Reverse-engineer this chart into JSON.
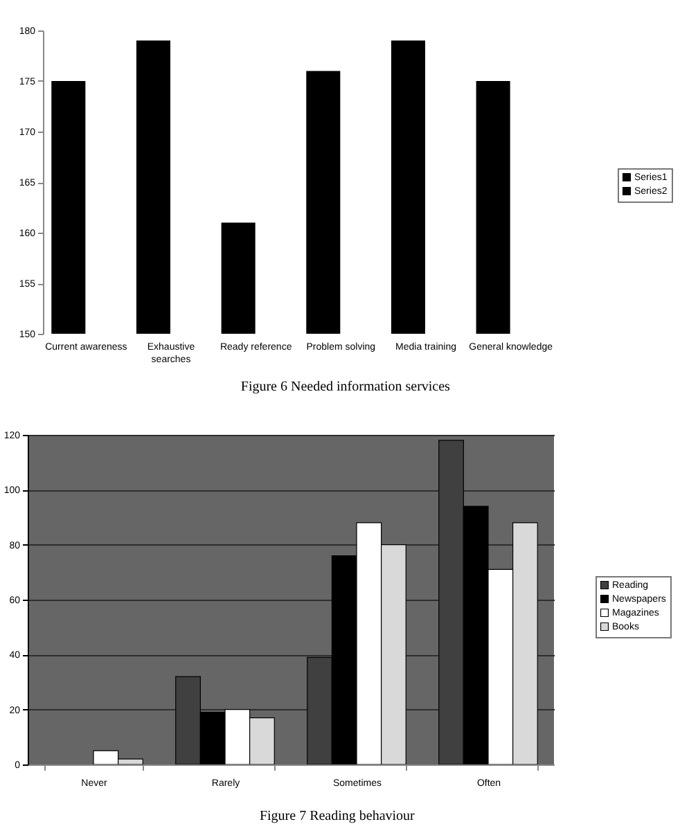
{
  "chart_data": [
    {
      "type": "bar",
      "title": "Figure 6  Needed information services",
      "categories": [
        "Current awareness",
        "Exhaustive searches",
        "Ready reference",
        "Problem solving",
        "Media training",
        "General knowledge"
      ],
      "series": [
        {
          "name": "Series1",
          "color": "#000000",
          "values": [
            175,
            179,
            161,
            176,
            179,
            175
          ]
        },
        {
          "name": "Series2",
          "color": "#000000",
          "values": [
            null,
            null,
            null,
            null,
            null,
            null
          ]
        }
      ],
      "ylim": [
        150,
        180
      ],
      "yticks": [
        150,
        155,
        160,
        165,
        170,
        175,
        180
      ],
      "legend": "right"
    },
    {
      "type": "bar",
      "title": "Figure 7  Reading behaviour",
      "categories": [
        "Never",
        "Rarely",
        "Sometimes",
        "Often"
      ],
      "series": [
        {
          "name": "Reading",
          "color": "#404040",
          "values": [
            null,
            32,
            39,
            118
          ]
        },
        {
          "name": "Newspapers",
          "color": "#000000",
          "values": [
            null,
            19,
            76,
            94
          ]
        },
        {
          "name": "Magazines",
          "color": "#ffffff",
          "values": [
            5,
            20,
            88,
            71
          ]
        },
        {
          "name": "Books",
          "color": "#d9d9d9",
          "values": [
            2,
            17,
            80,
            88
          ]
        }
      ],
      "ylim": [
        0,
        120
      ],
      "yticks": [
        0,
        20,
        40,
        60,
        80,
        100,
        120
      ],
      "grid": "y",
      "legend": "right"
    }
  ]
}
